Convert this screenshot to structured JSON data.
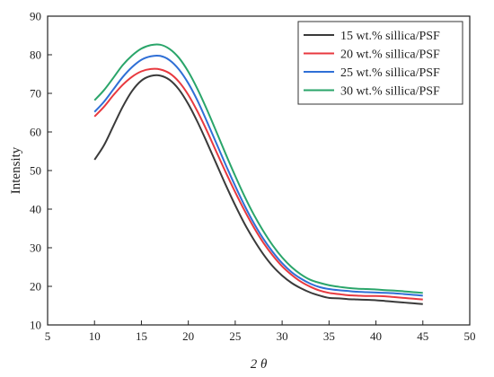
{
  "chart_data": {
    "type": "line",
    "xlabel": "2 θ",
    "ylabel": "Intensity",
    "xlim": [
      5,
      50
    ],
    "ylim": [
      10,
      90
    ],
    "xticks": [
      5,
      10,
      15,
      20,
      25,
      30,
      35,
      40,
      45,
      50
    ],
    "yticks": [
      10,
      20,
      30,
      40,
      50,
      60,
      70,
      80,
      90
    ],
    "grid": false,
    "legend_position": "top-right",
    "x": [
      10,
      11,
      12,
      13,
      14,
      15,
      16,
      17,
      18,
      19,
      20,
      21,
      22,
      23,
      24,
      25,
      26,
      27,
      28,
      29,
      30,
      31,
      32,
      33,
      34,
      35,
      36,
      37,
      38,
      39,
      40,
      41,
      42,
      43,
      44,
      45
    ],
    "series": [
      {
        "name": "15 wt.% sillica/PSF",
        "color": "#3a3a3a",
        "values": [
          52.8,
          56.5,
          61.5,
          66.5,
          70.6,
          73.3,
          74.5,
          74.6,
          73.5,
          71.0,
          67.2,
          62.5,
          57.2,
          51.7,
          46.2,
          41.0,
          36.2,
          32.0,
          28.3,
          25.2,
          22.8,
          20.9,
          19.5,
          18.4,
          17.6,
          17.0,
          16.9,
          16.7,
          16.6,
          16.5,
          16.4,
          16.2,
          16.0,
          15.8,
          15.6,
          15.4
        ]
      },
      {
        "name": "20 wt.% sillica/PSF",
        "color": "#e8393f",
        "values": [
          64.0,
          66.5,
          69.5,
          72.2,
          74.3,
          75.7,
          76.3,
          76.2,
          75.2,
          73.0,
          69.6,
          65.2,
          60.2,
          54.8,
          49.5,
          44.4,
          39.6,
          35.2,
          31.3,
          28.0,
          25.2,
          23.0,
          21.2,
          19.9,
          18.9,
          18.3,
          18.0,
          17.7,
          17.6,
          17.5,
          17.5,
          17.4,
          17.2,
          17.0,
          16.8,
          16.6
        ]
      },
      {
        "name": "25 wt.% sillica/PSF",
        "color": "#2f6fd6",
        "values": [
          65.2,
          67.8,
          71.0,
          74.2,
          76.8,
          78.7,
          79.6,
          79.7,
          78.6,
          76.2,
          72.6,
          68.0,
          62.6,
          57.0,
          51.4,
          46.0,
          40.9,
          36.3,
          32.3,
          28.9,
          26.0,
          23.7,
          22.0,
          20.7,
          19.8,
          19.3,
          19.0,
          18.8,
          18.6,
          18.5,
          18.4,
          18.3,
          18.2,
          18.0,
          17.8,
          17.6
        ]
      },
      {
        "name": "30 wt.% sillica/PSF",
        "color": "#2aa56a",
        "values": [
          68.2,
          70.8,
          74.0,
          77.3,
          79.8,
          81.6,
          82.5,
          82.6,
          81.5,
          79.2,
          75.6,
          71.0,
          65.7,
          60.0,
          54.2,
          48.6,
          43.3,
          38.5,
          34.3,
          30.6,
          27.5,
          25.0,
          23.1,
          21.7,
          20.9,
          20.3,
          19.9,
          19.6,
          19.4,
          19.3,
          19.2,
          19.0,
          18.9,
          18.7,
          18.5,
          18.3
        ]
      }
    ]
  }
}
